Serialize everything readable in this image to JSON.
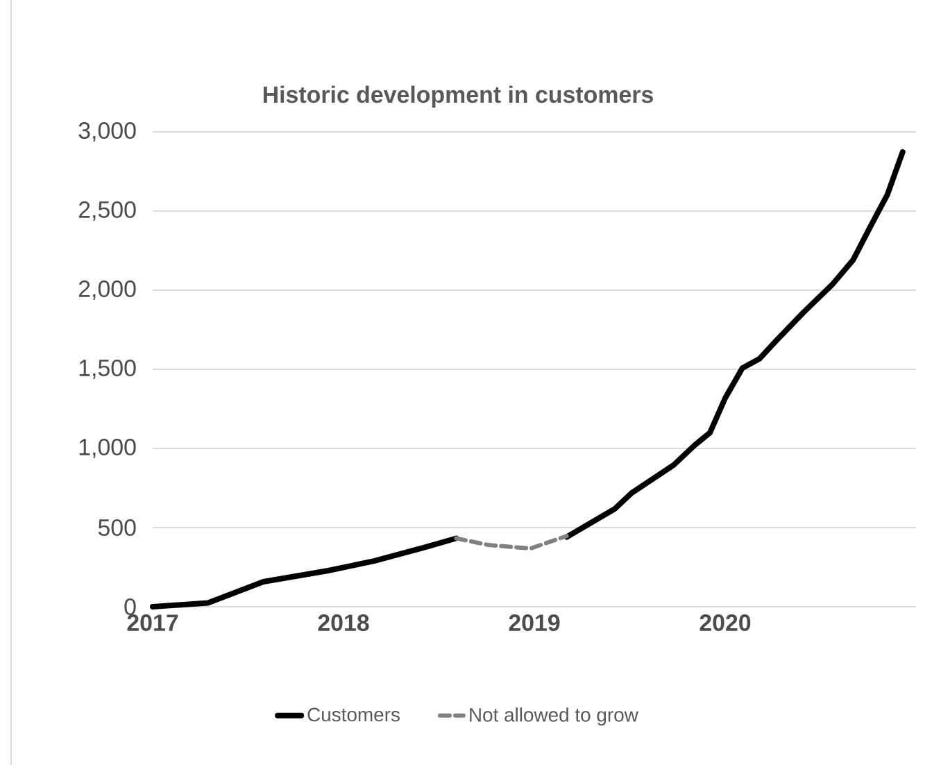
{
  "chart_data": {
    "type": "line",
    "title": "Historic development in customers",
    "xlim": [
      2017,
      2021
    ],
    "xticks": [
      2017,
      2018,
      2019,
      2020
    ],
    "ylim": [
      0,
      3000
    ],
    "yticks": [
      0,
      500,
      {
        "value": 1000,
        "label": "1,000"
      },
      {
        "value": 1500,
        "label": "1,500"
      },
      {
        "value": 2000,
        "label": "2,000"
      },
      {
        "value": 2500,
        "label": "2,500"
      },
      {
        "value": 3000,
        "label": "3,000"
      }
    ],
    "grid": "y",
    "legend": "bottom",
    "series": [
      {
        "name": "Customers",
        "color": "#000000",
        "line_style": "solid",
        "x": [
          2017.0,
          2017.29,
          2017.58,
          2017.92,
          2018.16,
          2018.43,
          2018.59,
          2018.8,
          2019.17,
          2019.42,
          2019.51,
          2019.73,
          2019.84,
          2019.92,
          2020.0,
          2020.09,
          2020.18,
          2020.27,
          2020.41,
          2020.56,
          2020.67,
          2020.76,
          2020.85,
          2020.93
        ],
        "values": [
          0,
          24,
          158,
          228,
          289,
          377,
          432,
          null,
          441,
          617,
          719,
          895,
          1020,
          1099,
          1318,
          1508,
          1567,
          1684,
          1859,
          2034,
          2190,
          2400,
          2604,
          2873
        ]
      },
      {
        "name": "Not allowed to grow",
        "color": "#808080",
        "line_style": "dashed",
        "x": [
          2018.59,
          2018.76,
          2018.98,
          2019.17
        ],
        "values": [
          432,
          390,
          368,
          447
        ]
      }
    ]
  }
}
